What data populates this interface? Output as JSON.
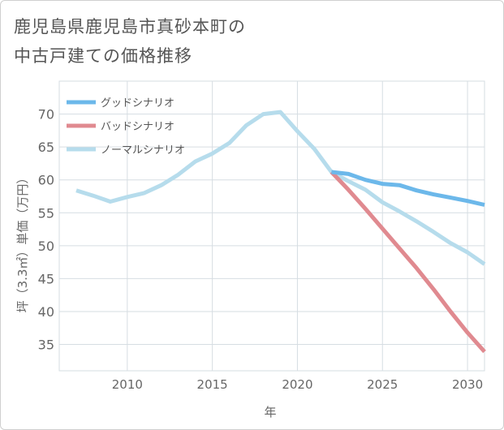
{
  "title_lines": [
    "鹿児島県鹿児島市真砂本町の",
    "中古戸建ての価格推移"
  ],
  "chart_data": {
    "type": "line",
    "title": "鹿児島県鹿児島市真砂本町の中古戸建ての価格推移",
    "xlabel": "年",
    "ylabel": "坪（3.3㎡）単価（万円）",
    "xlim": [
      2006,
      2031
    ],
    "ylim": [
      31,
      75
    ],
    "xticks": [
      2010,
      2015,
      2020,
      2025,
      2030
    ],
    "yticks": [
      35,
      40,
      45,
      50,
      55,
      60,
      65,
      70
    ],
    "grid": true,
    "legend_position": "top-left",
    "series": [
      {
        "name": "グッドシナリオ",
        "color": "#6cb8ea",
        "x": [
          2022,
          2023,
          2024,
          2025,
          2026,
          2027,
          2028,
          2029,
          2030,
          2031
        ],
        "y": [
          61.2,
          60.9,
          60.0,
          59.4,
          59.2,
          58.4,
          57.8,
          57.3,
          56.8,
          56.2
        ]
      },
      {
        "name": "バッドシナリオ",
        "color": "#e08a90",
        "x": [
          2022,
          2023,
          2024,
          2025,
          2026,
          2027,
          2028,
          2029,
          2030,
          2031
        ],
        "y": [
          61.2,
          58.5,
          55.6,
          52.6,
          49.6,
          46.6,
          43.4,
          40.0,
          36.8,
          33.9
        ]
      },
      {
        "name": "ノーマルシナリオ",
        "color": "#b6dcec",
        "x": [
          2007,
          2008,
          2009,
          2010,
          2011,
          2012,
          2013,
          2014,
          2015,
          2016,
          2017,
          2018,
          2019,
          2020,
          2021,
          2022,
          2023,
          2024,
          2025,
          2026,
          2027,
          2028,
          2029,
          2030,
          2031
        ],
        "y": [
          58.4,
          57.6,
          56.7,
          57.4,
          58.0,
          59.2,
          60.8,
          62.8,
          64.0,
          65.6,
          68.3,
          70.0,
          70.3,
          67.4,
          64.7,
          61.2,
          59.8,
          58.5,
          56.6,
          55.2,
          53.7,
          52.1,
          50.4,
          49.0,
          47.2
        ]
      }
    ]
  }
}
